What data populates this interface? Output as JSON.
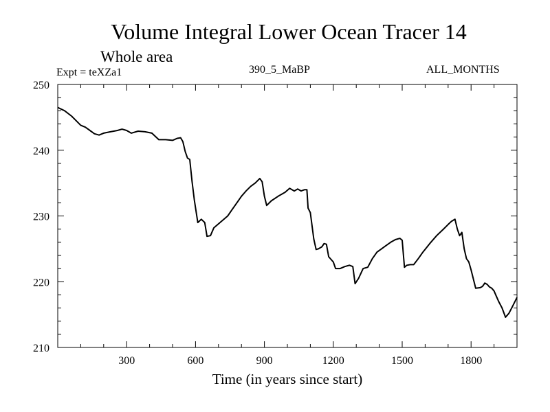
{
  "chart_data": {
    "type": "line",
    "title": "Volume Integral Lower Ocean Tracer 14",
    "subtitle": "Whole area",
    "experiment_label": "Expt = teXZa1",
    "run_label": "390_5_MaBP",
    "months_label": "ALL_MONTHS",
    "xlabel": "Time (in years since start)",
    "ylabel": "",
    "xlim": [
      0,
      2000
    ],
    "ylim": [
      210,
      250
    ],
    "xticks": [
      300,
      600,
      900,
      1200,
      1500,
      1800
    ],
    "yticks": [
      210,
      220,
      230,
      240,
      250
    ],
    "series": [
      {
        "name": "Tracer 14",
        "x": [
          0,
          30,
          60,
          80,
          100,
          120,
          140,
          160,
          180,
          200,
          230,
          260,
          280,
          300,
          320,
          350,
          380,
          410,
          440,
          470,
          500,
          520,
          535,
          545,
          555,
          565,
          575,
          585,
          595,
          610,
          625,
          640,
          650,
          665,
          680,
          700,
          720,
          740,
          760,
          780,
          800,
          820,
          840,
          860,
          880,
          890,
          900,
          910,
          930,
          960,
          990,
          1010,
          1030,
          1045,
          1060,
          1075,
          1085,
          1090,
          1100,
          1115,
          1125,
          1135,
          1150,
          1160,
          1170,
          1180,
          1200,
          1210,
          1230,
          1250,
          1270,
          1285,
          1295,
          1310,
          1330,
          1350,
          1370,
          1390,
          1410,
          1430,
          1450,
          1470,
          1490,
          1500,
          1510,
          1520,
          1535,
          1550,
          1570,
          1590,
          1620,
          1650,
          1680,
          1700,
          1715,
          1730,
          1740,
          1750,
          1760,
          1770,
          1780,
          1790,
          1800,
          1820,
          1840,
          1850,
          1860,
          1870,
          1880,
          1890,
          1900,
          1910,
          1920,
          1935,
          1950,
          1965,
          1980,
          2000
        ],
        "y": [
          246.5,
          246.0,
          245.2,
          244.5,
          243.8,
          243.5,
          243.0,
          242.5,
          242.3,
          242.6,
          242.8,
          243.0,
          243.2,
          243.0,
          242.6,
          242.9,
          242.8,
          242.6,
          241.6,
          241.6,
          241.5,
          241.8,
          241.9,
          241.3,
          239.8,
          238.8,
          238.6,
          235.2,
          232.4,
          229.0,
          229.5,
          229.0,
          226.9,
          227.0,
          228.2,
          228.8,
          229.4,
          230.0,
          231.0,
          232.0,
          233.0,
          233.8,
          234.5,
          235.0,
          235.7,
          235.2,
          233.0,
          231.6,
          232.3,
          233.0,
          233.6,
          234.2,
          233.8,
          234.1,
          233.8,
          234.0,
          234.0,
          231.2,
          230.5,
          226.5,
          224.9,
          225.0,
          225.3,
          225.8,
          225.7,
          223.8,
          223.0,
          222.0,
          222.0,
          222.3,
          222.5,
          222.3,
          219.7,
          220.5,
          222.0,
          222.2,
          223.5,
          224.5,
          225.0,
          225.5,
          226.0,
          226.4,
          226.6,
          226.3,
          222.2,
          222.5,
          222.6,
          222.6,
          223.5,
          224.5,
          225.8,
          227.0,
          228.0,
          228.7,
          229.2,
          229.5,
          228.0,
          227.0,
          227.5,
          225.0,
          223.5,
          223.0,
          221.8,
          219.0,
          219.1,
          219.3,
          219.8,
          219.6,
          219.2,
          219.0,
          218.6,
          217.8,
          217.0,
          216.0,
          214.6,
          215.2,
          216.2,
          217.6
        ]
      }
    ]
  }
}
